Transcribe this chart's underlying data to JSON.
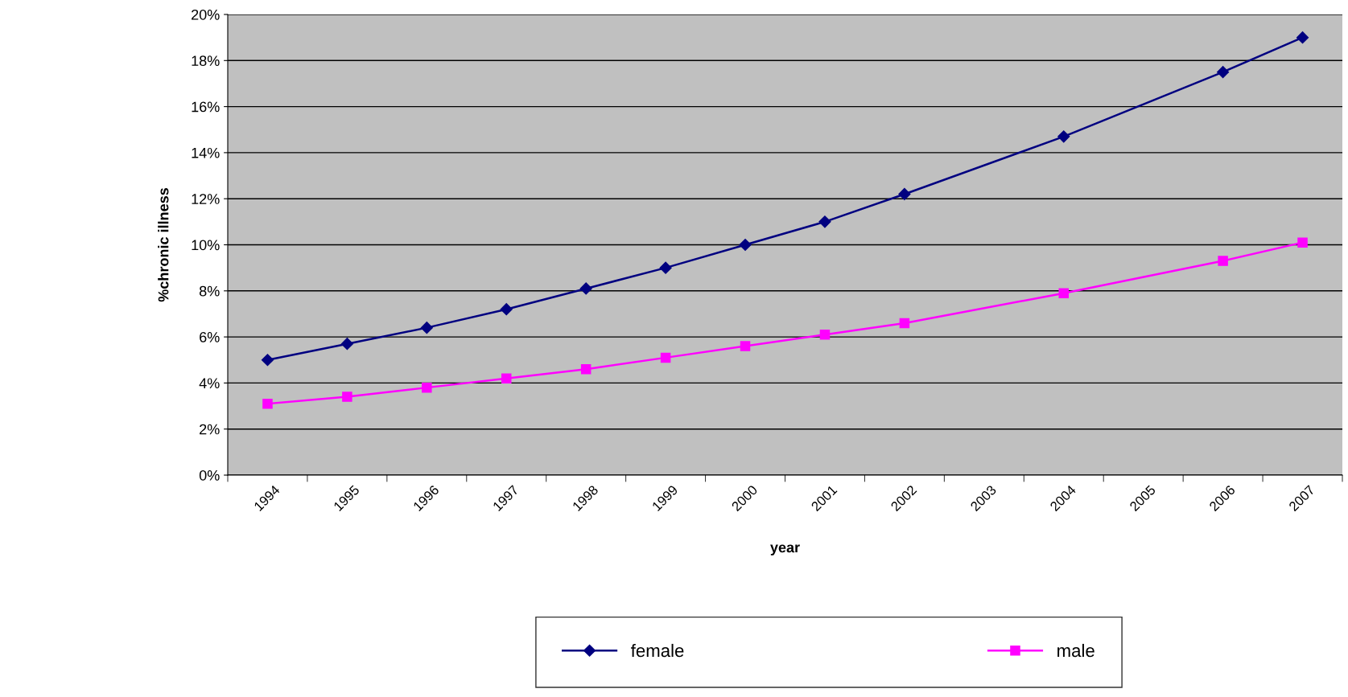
{
  "chart_data": {
    "type": "line",
    "xlabel": "year",
    "ylabel": "%chronic illness",
    "categories": [
      "1994",
      "1995",
      "1996",
      "1997",
      "1998",
      "1999",
      "2000",
      "2001",
      "2002",
      "2003",
      "2004",
      "2005",
      "2006",
      "2007"
    ],
    "series": [
      {
        "name": "female",
        "color": "#000080",
        "marker": "diamond",
        "values": [
          5.0,
          5.7,
          6.4,
          7.2,
          8.1,
          9.0,
          10.0,
          11.0,
          12.2,
          null,
          14.7,
          null,
          17.5,
          19.0
        ]
      },
      {
        "name": "male",
        "color": "#ff00ff",
        "marker": "square",
        "values": [
          3.1,
          3.4,
          3.8,
          4.2,
          4.6,
          5.1,
          5.6,
          6.1,
          6.6,
          null,
          7.9,
          null,
          9.3,
          10.1
        ]
      }
    ],
    "ylim": [
      0,
      20
    ],
    "yticks": [
      {
        "value": 0,
        "label": "0%"
      },
      {
        "value": 2,
        "label": "2%"
      },
      {
        "value": 4,
        "label": "4%"
      },
      {
        "value": 6,
        "label": "6%"
      },
      {
        "value": 8,
        "label": "8%"
      },
      {
        "value": 10,
        "label": "10%"
      },
      {
        "value": 12,
        "label": "12%"
      },
      {
        "value": 14,
        "label": "14%"
      },
      {
        "value": 16,
        "label": "16%"
      },
      {
        "value": 18,
        "label": "18%"
      },
      {
        "value": 20,
        "label": "20%"
      }
    ],
    "grid": "y",
    "legend": "bottom",
    "line_style": "solid"
  }
}
